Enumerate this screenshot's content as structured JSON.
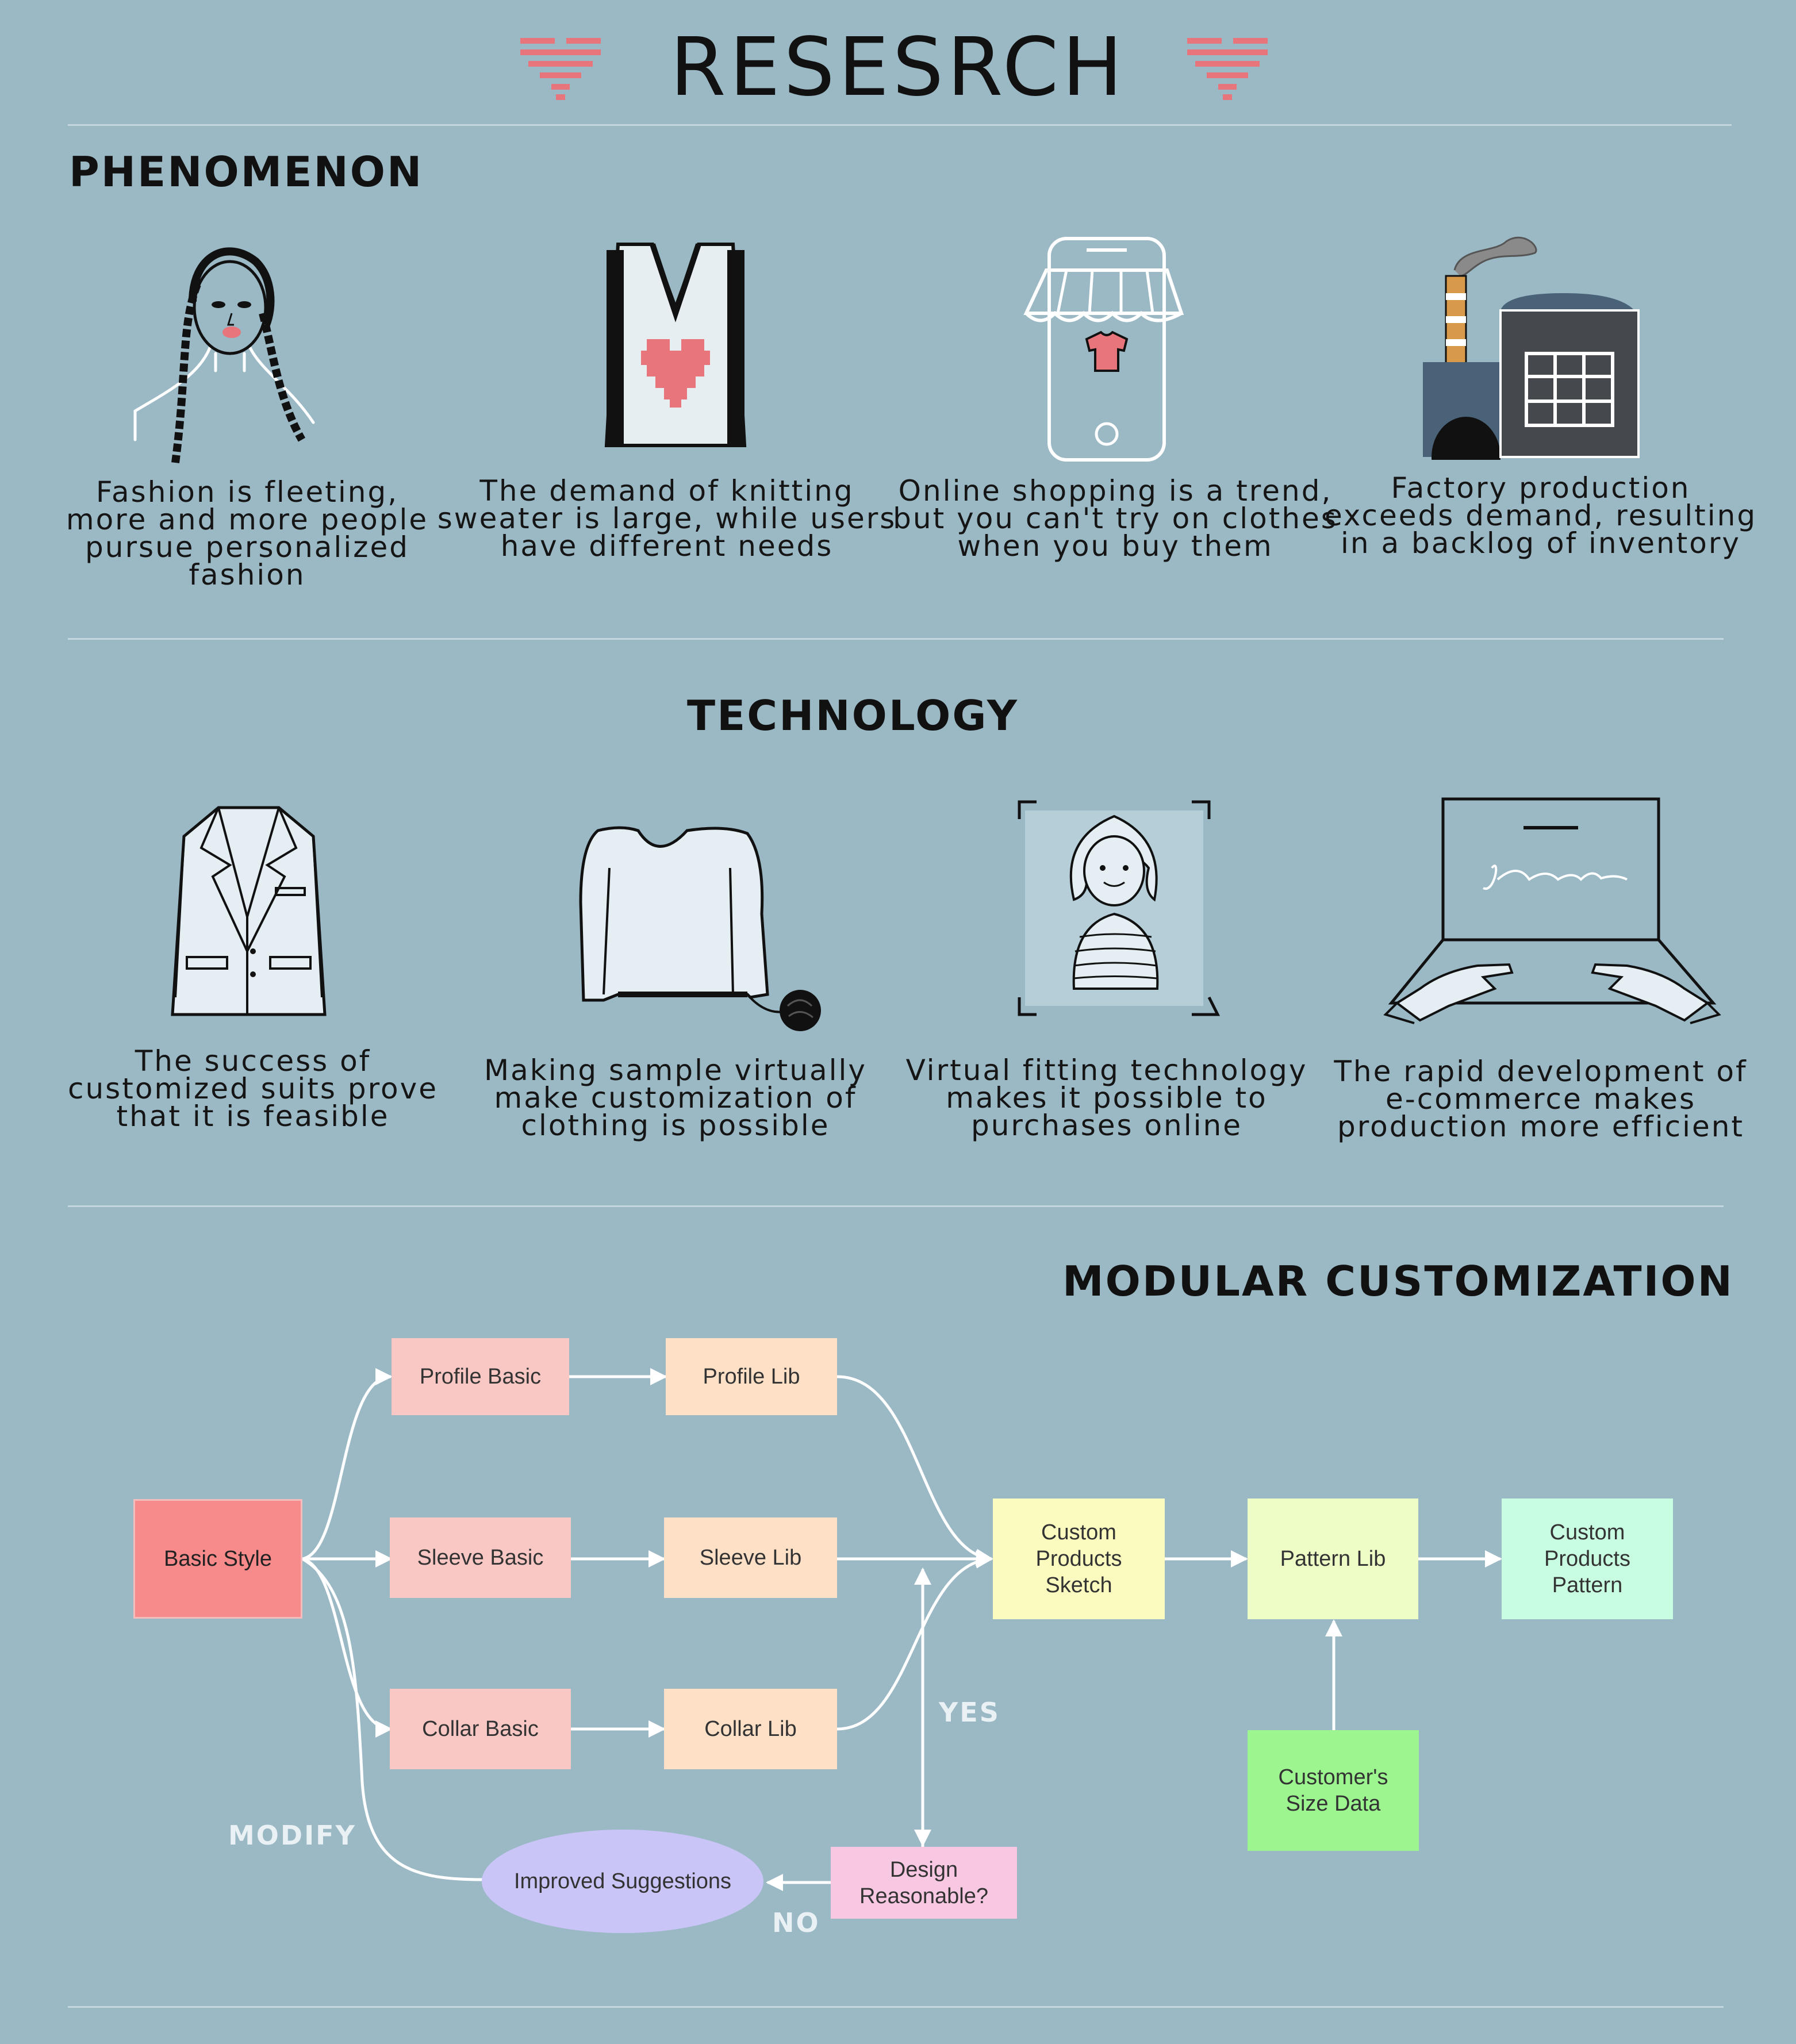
{
  "title": "RESESRCH",
  "colors": {
    "background": "#9bb8c5",
    "accent": "#e8747c",
    "rule": "#c4d6de"
  },
  "phenomenon": {
    "heading": "PHENOMENON",
    "items": [
      {
        "icon": "woman-braids-icon",
        "caption": "Fashion is fleeting,\nmore and more people\npursue personalized\nfashion"
      },
      {
        "icon": "heart-sweater-icon",
        "caption": "The demand of knitting\nsweater is large, while users\nhave different needs"
      },
      {
        "icon": "phone-shop-icon",
        "caption": "Online shopping is a trend,\nbut you can't try on clothes\nwhen you buy them"
      },
      {
        "icon": "factory-icon",
        "caption": "Factory production\nexceeds demand, resulting\nin a backlog of inventory"
      }
    ]
  },
  "technology": {
    "heading": "TECHNOLOGY",
    "items": [
      {
        "icon": "suit-jacket-icon",
        "caption": "The success of\ncustomized suits prove\nthat it is feasible"
      },
      {
        "icon": "virtual-sweater-icon",
        "caption": "Making sample virtually\nmake customization of\nclothing is possible"
      },
      {
        "icon": "virtual-fitting-icon",
        "caption": "Virtual fitting technology\nmakes it possible to\npurchases online"
      },
      {
        "icon": "laptop-typing-icon",
        "caption": "The rapid development of\ne-commerce makes\nproduction more efficient"
      }
    ]
  },
  "modular": {
    "heading": "MODULAR CUSTOMIZATION",
    "nodes": {
      "basic_style": "Basic Style",
      "profile_basic": "Profile Basic",
      "profile_lib": "Profile Lib",
      "sleeve_basic": "Sleeve Basic",
      "sleeve_lib": "Sleeve Lib",
      "collar_basic": "Collar Basic",
      "collar_lib": "Collar Lib",
      "custom_sketch": "Custom\nProducts\nSketch",
      "pattern_lib": "Pattern Lib",
      "custom_pattern": "Custom\nProducts\nPattern",
      "size_data": "Customer's\nSize Data",
      "design_reasonable": "Design\nReasonable?",
      "improved_suggestions": "Improved Suggestions"
    },
    "labels": {
      "yes": "YES",
      "no": "NO",
      "modify": "MODIFY"
    },
    "node_colors": {
      "basic_style": "#f78a8a",
      "basic": "#f9c8c4",
      "lib": "#fde0c6",
      "sketch": "#fbfbbf",
      "pattern_lib": "#eefcc6",
      "custom_pattern": "#c8fde2",
      "size_data": "#9cf58f",
      "design": "#f8c8e2",
      "suggest": "#c9c5f7"
    }
  }
}
